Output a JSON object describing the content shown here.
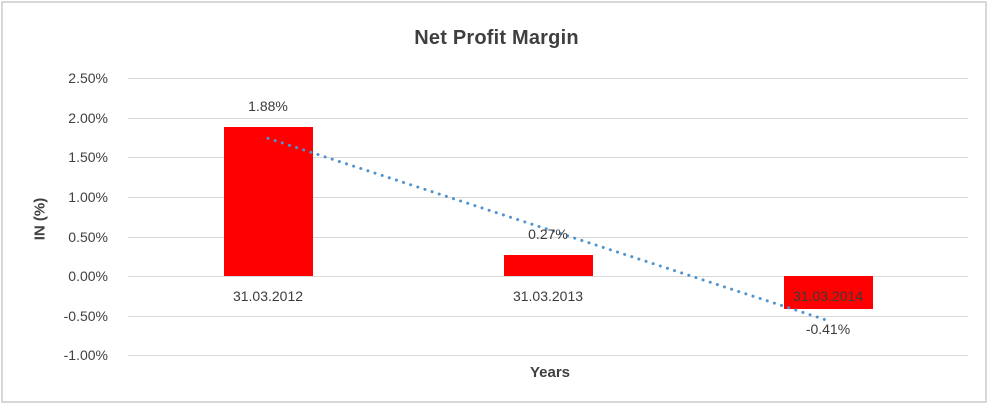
{
  "chart_data": {
    "type": "bar",
    "title": "Net Profit Margin",
    "xlabel": "Years",
    "ylabel": "IN (%)",
    "categories": [
      "31.03.2012",
      "31.03.2013",
      "31.03.2014"
    ],
    "values": [
      1.88,
      0.27,
      -0.41
    ],
    "data_labels": [
      "1.88%",
      "0.27%",
      "-0.41%"
    ],
    "y_ticks": [
      "2.50%",
      "2.00%",
      "1.50%",
      "1.00%",
      "0.50%",
      "0.00%",
      "-0.50%",
      "-1.00%"
    ],
    "y_tick_values": [
      2.5,
      2.0,
      1.5,
      1.0,
      0.5,
      0.0,
      -0.5,
      -1.0
    ],
    "ylim": [
      -1.0,
      2.5
    ],
    "grid": true,
    "legend": "none",
    "bar_color": "#fe0000",
    "trendline": {
      "type": "linear",
      "style": "dotted",
      "color": "#5193ce",
      "start_value": 1.74,
      "end_value": -0.56
    }
  }
}
